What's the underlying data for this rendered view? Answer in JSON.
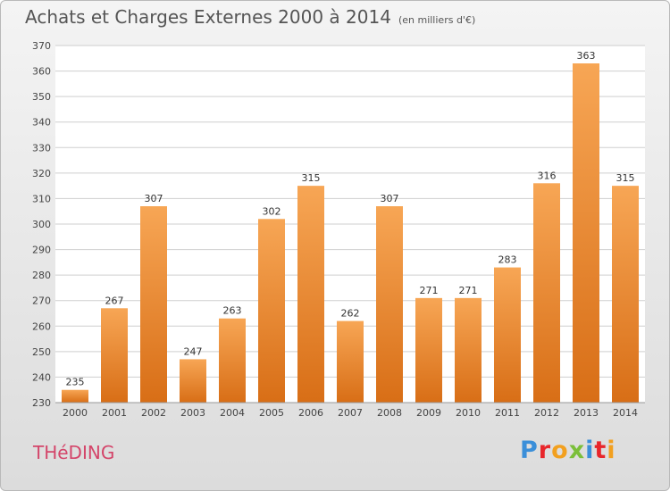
{
  "header": {
    "title": "Achats et Charges Externes 2000 à 2014",
    "unit": "(en milliers d'€)"
  },
  "footer": {
    "place": "THéDING",
    "brand_letters": [
      "P",
      "r",
      "o",
      "x",
      "i",
      "t",
      "i"
    ],
    "brand_colors": [
      "#3b8fd9",
      "#e8262b",
      "#f2a01f",
      "#7bbf3a",
      "#3b8fd9",
      "#e8262b",
      "#f2a01f"
    ]
  },
  "colors": {
    "bar_top": "#f7a655",
    "bar_bottom": "#d86e16",
    "grid": "#cfcfcf",
    "plot_bg": "#ffffff"
  },
  "chart_data": {
    "type": "bar",
    "title": "Achats et Charges Externes 2000 à 2014",
    "subtitle": "(en milliers d'€)",
    "categories": [
      "2000",
      "2001",
      "2002",
      "2003",
      "2004",
      "2005",
      "2006",
      "2007",
      "2008",
      "2009",
      "2010",
      "2011",
      "2012",
      "2013",
      "2014"
    ],
    "values": [
      235,
      267,
      307,
      247,
      263,
      302,
      315,
      262,
      307,
      271,
      271,
      283,
      316,
      363,
      315
    ],
    "ylim": [
      230,
      370
    ],
    "yticks": [
      230,
      240,
      250,
      260,
      270,
      280,
      290,
      300,
      310,
      320,
      330,
      340,
      350,
      360,
      370
    ],
    "grid": true,
    "legend": "none"
  }
}
